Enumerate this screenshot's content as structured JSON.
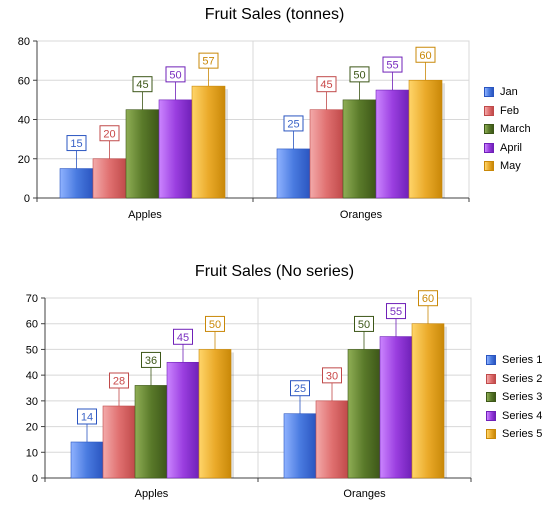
{
  "colors": {
    "series": [
      "#4a7be0",
      "#e07070",
      "#5a7a2a",
      "#9b3fe0",
      "#eaaa2a"
    ],
    "series_light": [
      "#8fb2ff",
      "#f3aaaa",
      "#8fae55",
      "#cb85ff",
      "#ffd56a"
    ],
    "series_dark": [
      "#2a55c0",
      "#c04a4a",
      "#3d5718",
      "#6f20b8",
      "#c98808"
    ],
    "label_text": [
      "#3a63c7",
      "#c94848",
      "#3d5718",
      "#7a2fc0",
      "#c98808"
    ],
    "axis": "#404040",
    "grid": "#d8d8d8"
  },
  "chart_data": [
    {
      "type": "bar",
      "title": "Fruit Sales (tonnes)",
      "categories": [
        "Apples",
        "Oranges"
      ],
      "series": [
        {
          "name": "Jan",
          "values": [
            15,
            25
          ]
        },
        {
          "name": "Feb",
          "values": [
            20,
            45
          ]
        },
        {
          "name": "March",
          "values": [
            45,
            50
          ]
        },
        {
          "name": "April",
          "values": [
            50,
            55
          ]
        },
        {
          "name": "May",
          "values": [
            57,
            60
          ]
        }
      ],
      "ylim": [
        0,
        80
      ],
      "yticks": [
        0,
        20,
        40,
        60,
        80
      ],
      "xlabel": "",
      "ylabel": "",
      "legend": "right",
      "data_labels": true
    },
    {
      "type": "bar",
      "title": "Fruit Sales (No series)",
      "categories": [
        "Apples",
        "Oranges"
      ],
      "series": [
        {
          "name": "Series 1",
          "values": [
            14,
            25
          ]
        },
        {
          "name": "Series 2",
          "values": [
            28,
            30
          ]
        },
        {
          "name": "Series 3",
          "values": [
            36,
            50
          ]
        },
        {
          "name": "Series 4",
          "values": [
            45,
            55
          ]
        },
        {
          "name": "Series 5",
          "values": [
            50,
            60
          ]
        }
      ],
      "ylim": [
        0,
        70
      ],
      "yticks": [
        0,
        10,
        20,
        30,
        40,
        50,
        60,
        70
      ],
      "xlabel": "",
      "ylabel": "",
      "legend": "right",
      "data_labels": true
    }
  ]
}
